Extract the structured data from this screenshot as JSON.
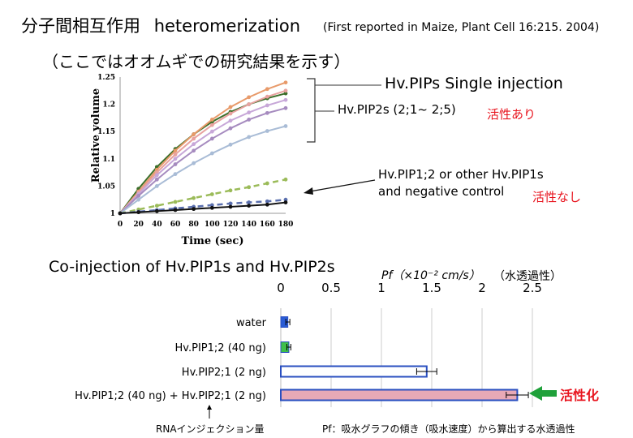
{
  "slide": {
    "title_main": "分子間相互作用",
    "title_term": "heteromerization",
    "title_ref": "(First reported in Maize, Plant Cell 16:215. 2004)",
    "subtitle": "（ここではオオムギでの研究結果を示す）",
    "single_injection_label": "Hv.PIPs Single injection",
    "pip2s_label": "Hv.PIP2s (2;1~ 2;5)",
    "active_label": "活性あり",
    "pip1_label_line1": "Hv.PIP1;2  or  other Hv.PIP1s",
    "pip1_label_line2": "and negative control",
    "inactive_label": "活性なし",
    "coinjection_title": "Co-injection of Hv.PIP1s and Hv.PIP2s",
    "pf_unit_label": "Pf（×10⁻² cm/s）",
    "pf_note": "（水透過性）",
    "activation_label": "活性化",
    "rna_footnote": "RNAインジェクション量",
    "pf_footnote": "Pf：吸水グラフの傾き（吸水速度）から算出する水透過性",
    "colors": {
      "red_text": "#e8141e",
      "arrow_green": "#1fa13a"
    }
  },
  "chart_data": [
    {
      "type": "line",
      "xlabel": "Time (sec)",
      "ylabel": "Relative volume",
      "xlim": [
        0,
        180
      ],
      "ylim": [
        1,
        1.25
      ],
      "xticks": [
        0,
        20,
        40,
        60,
        80,
        100,
        120,
        140,
        160,
        180
      ],
      "yticks": [
        1,
        1.05,
        1.1,
        1.15,
        1.2,
        1.25
      ],
      "ytick_labels": [
        "1",
        "1.05",
        "1.1",
        "1.15",
        "1.2",
        "1.25"
      ],
      "grid": false,
      "x": [
        0,
        20,
        40,
        60,
        80,
        100,
        120,
        140,
        160,
        180
      ],
      "series": [
        {
          "values": [
            1,
            1.045,
            1.085,
            1.118,
            1.145,
            1.168,
            1.186,
            1.2,
            1.211,
            1.22
          ],
          "color": "#3b6e2a",
          "style": "solid"
        },
        {
          "values": [
            1,
            1.04,
            1.08,
            1.115,
            1.145,
            1.172,
            1.195,
            1.213,
            1.228,
            1.24
          ],
          "color": "#e89a6a",
          "style": "solid"
        },
        {
          "values": [
            1,
            1.038,
            1.075,
            1.108,
            1.137,
            1.162,
            1.183,
            1.2,
            1.214,
            1.225
          ],
          "color": "#e8a2a0",
          "style": "solid"
        },
        {
          "values": [
            1,
            1.035,
            1.07,
            1.1,
            1.127,
            1.15,
            1.17,
            1.185,
            1.198,
            1.208
          ],
          "color": "#c7a7d8",
          "style": "solid"
        },
        {
          "values": [
            1,
            1.032,
            1.062,
            1.09,
            1.115,
            1.137,
            1.156,
            1.172,
            1.184,
            1.193
          ],
          "color": "#a68bbf",
          "style": "solid"
        },
        {
          "values": [
            1,
            1.025,
            1.05,
            1.072,
            1.092,
            1.11,
            1.126,
            1.14,
            1.151,
            1.16
          ],
          "color": "#a9bcd6",
          "style": "solid"
        },
        {
          "values": [
            1,
            1.007,
            1.014,
            1.021,
            1.028,
            1.035,
            1.042,
            1.048,
            1.055,
            1.062
          ],
          "color": "#9bbb59",
          "style": "dashed"
        },
        {
          "values": [
            1,
            1.003,
            1.006,
            1.009,
            1.012,
            1.015,
            1.018,
            1.02,
            1.022,
            1.025
          ],
          "color": "#5a6fae",
          "style": "dashed"
        },
        {
          "values": [
            1,
            1.002,
            1.004,
            1.006,
            1.008,
            1.01,
            1.012,
            1.014,
            1.016,
            1.02
          ],
          "color": "#111111",
          "style": "solid"
        }
      ]
    },
    {
      "type": "bar",
      "orientation": "horizontal",
      "categories": [
        "water",
        "Hv.PIP1;2 (40 ng)",
        "Hv.PIP2;1 (2 ng)",
        "Hv.PIP1;2 (40 ng) + Hv.PIP2;1 (2 ng)"
      ],
      "values": [
        0.07,
        0.08,
        1.45,
        2.35
      ],
      "errors": [
        0.02,
        0.02,
        0.1,
        0.11
      ],
      "colors": [
        "#2a5cd6",
        "#3fbf4a",
        "#ffffff",
        "#e8a9b6"
      ],
      "edge_color": "#2a4fc0",
      "xlim": [
        0,
        2.5
      ],
      "xticks": [
        0,
        0.5,
        1,
        1.5,
        2,
        2.5
      ],
      "xtick_labels": [
        "0",
        "0.5",
        "1",
        "1.5",
        "2",
        "2.5"
      ],
      "grid": true
    }
  ]
}
